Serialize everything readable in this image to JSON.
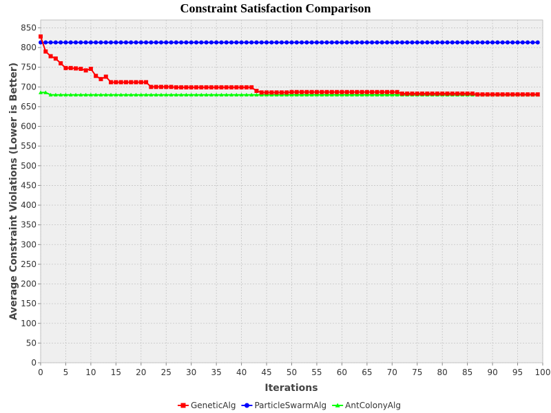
{
  "chart_data": {
    "type": "line",
    "title": "Constraint Satisfaction Comparison",
    "xlabel": "Iterations",
    "ylabel": "Average Constraint Violations (Lower is Better)",
    "xlim": [
      0,
      100
    ],
    "ylim": [
      0,
      870
    ],
    "xticks": [
      0,
      5,
      10,
      15,
      20,
      25,
      30,
      35,
      40,
      45,
      50,
      55,
      60,
      65,
      70,
      75,
      80,
      85,
      90,
      95,
      100
    ],
    "yticks": [
      0,
      50,
      100,
      150,
      200,
      250,
      300,
      350,
      400,
      450,
      500,
      550,
      600,
      650,
      700,
      750,
      800,
      850
    ],
    "grid": true,
    "legend_position": "bottom",
    "series": [
      {
        "name": "GeneticAlg",
        "color": "#ff0000",
        "marker": "square",
        "values": [
          828,
          790,
          778,
          772,
          760,
          748,
          748,
          747,
          746,
          742,
          746,
          728,
          720,
          726,
          712,
          712,
          712,
          712,
          712,
          712,
          712,
          712,
          700,
          700,
          700,
          700,
          700,
          699,
          699,
          699,
          699,
          699,
          699,
          699,
          699,
          699,
          699,
          699,
          699,
          699,
          699,
          699,
          699,
          690,
          686,
          686,
          686,
          686,
          686,
          686,
          687,
          687,
          687,
          687,
          687,
          687,
          687,
          687,
          687,
          687,
          687,
          687,
          687,
          687,
          687,
          687,
          687,
          687,
          687,
          687,
          687,
          687,
          683,
          683,
          683,
          683,
          683,
          683,
          683,
          683,
          683,
          683,
          683,
          683,
          683,
          683,
          683,
          681,
          681,
          681,
          681,
          681,
          681,
          681,
          681,
          681,
          681,
          681,
          681,
          681
        ]
      },
      {
        "name": "ParticleSwarmAlg",
        "color": "#0000ff",
        "marker": "circle",
        "values": [
          813,
          813,
          813,
          813,
          813,
          813,
          813,
          813,
          813,
          813,
          813,
          813,
          813,
          813,
          813,
          813,
          813,
          813,
          813,
          813,
          813,
          813,
          813,
          813,
          813,
          813,
          813,
          813,
          813,
          813,
          813,
          813,
          813,
          813,
          813,
          813,
          813,
          813,
          813,
          813,
          813,
          813,
          813,
          813,
          813,
          813,
          813,
          813,
          813,
          813,
          813,
          813,
          813,
          813,
          813,
          813,
          813,
          813,
          813,
          813,
          813,
          813,
          813,
          813,
          813,
          813,
          813,
          813,
          813,
          813,
          813,
          813,
          813,
          813,
          813,
          813,
          813,
          813,
          813,
          813,
          813,
          813,
          813,
          813,
          813,
          813,
          813,
          813,
          813,
          813,
          813,
          813,
          813,
          813,
          813,
          813,
          813,
          813,
          813,
          813
        ]
      },
      {
        "name": "AntColonyAlg",
        "color": "#00ff00",
        "marker": "triangle",
        "values": [
          686,
          686,
          680,
          680,
          680,
          680,
          680,
          680,
          680,
          680,
          680,
          680,
          680,
          680,
          680,
          680,
          680,
          680,
          680,
          680,
          680,
          680,
          680,
          680,
          680,
          680,
          680,
          680,
          680,
          680,
          680,
          680,
          680,
          680,
          680,
          680,
          680,
          680,
          680,
          680,
          680,
          680,
          680,
          680,
          680,
          680,
          680,
          680,
          680,
          680,
          680,
          680,
          680,
          680,
          680,
          680,
          680,
          680,
          680,
          680,
          680,
          680,
          680,
          680,
          680,
          680,
          680,
          680,
          680,
          680,
          680,
          680,
          680,
          680,
          680,
          680,
          680,
          680,
          680,
          680,
          680,
          680,
          680,
          680,
          680,
          680,
          680,
          680,
          680,
          680,
          680,
          680,
          680,
          680,
          680,
          680,
          680,
          680,
          680,
          680
        ]
      }
    ]
  }
}
